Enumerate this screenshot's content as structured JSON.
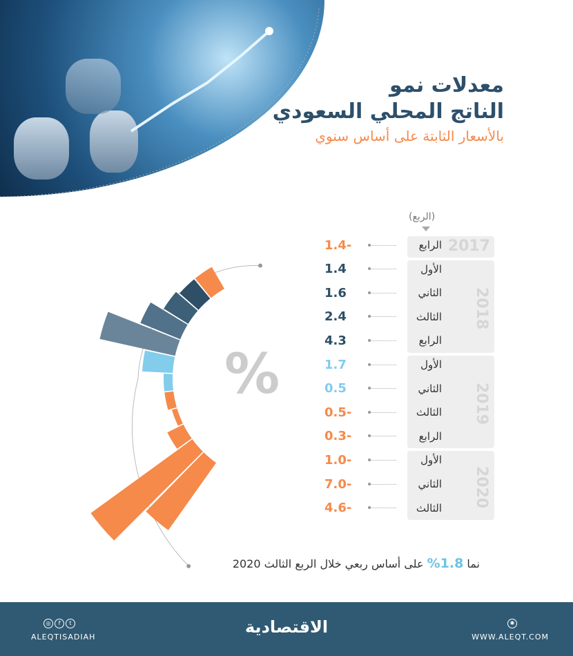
{
  "header": {
    "title_line1": "معدلات نمو",
    "title_line2": "الناتج المحلي السعودي",
    "subtitle": "بالأسعار الثابتة على أساس سنوي"
  },
  "quarter_header": "(الربع)",
  "center_symbol": "%",
  "chart_data": {
    "type": "radial-bar",
    "unit": "%",
    "years": [
      "2017",
      "2018",
      "2019",
      "2020"
    ],
    "rows": [
      {
        "year": "2017",
        "quarter": "الرابع",
        "value": -1.4,
        "label": "1.4-"
      },
      {
        "year": "2018",
        "quarter": "الأول",
        "value": 1.4,
        "label": "1.4"
      },
      {
        "year": "2018",
        "quarter": "الثاني",
        "value": 1.6,
        "label": "1.6"
      },
      {
        "year": "2018",
        "quarter": "الثالث",
        "value": 2.4,
        "label": "2.4"
      },
      {
        "year": "2018",
        "quarter": "الرابع",
        "value": 4.3,
        "label": "4.3"
      },
      {
        "year": "2019",
        "quarter": "الأول",
        "value": 1.7,
        "label": "1.7"
      },
      {
        "year": "2019",
        "quarter": "الثاني",
        "value": 0.5,
        "label": "0.5"
      },
      {
        "year": "2019",
        "quarter": "الثالث",
        "value": -0.5,
        "label": "0.5-"
      },
      {
        "year": "2019",
        "quarter": "الرابع",
        "value": -0.3,
        "label": "0.3-"
      },
      {
        "year": "2020",
        "quarter": "الأول",
        "value": -1.0,
        "label": "1.0-"
      },
      {
        "year": "2020",
        "quarter": "الثاني",
        "value": -7.0,
        "label": "7.0-"
      },
      {
        "year": "2020",
        "quarter": "الثالث",
        "value": -4.6,
        "label": "4.6-"
      }
    ],
    "colors": {
      "2018": [
        "#2e4f66",
        "#3d6078",
        "#52718a",
        "#6a8599"
      ],
      "2019": "#82ccec",
      "negative": "#f58a4b"
    }
  },
  "note": {
    "prefix": "نما",
    "value": "1.8%",
    "suffix": "على أساس ربعي خلال الربع الثالث 2020"
  },
  "footer": {
    "social": "ALEQTISADIAH",
    "logo": "الاقتصادية",
    "website": "WWW.ALEQT.COM"
  }
}
